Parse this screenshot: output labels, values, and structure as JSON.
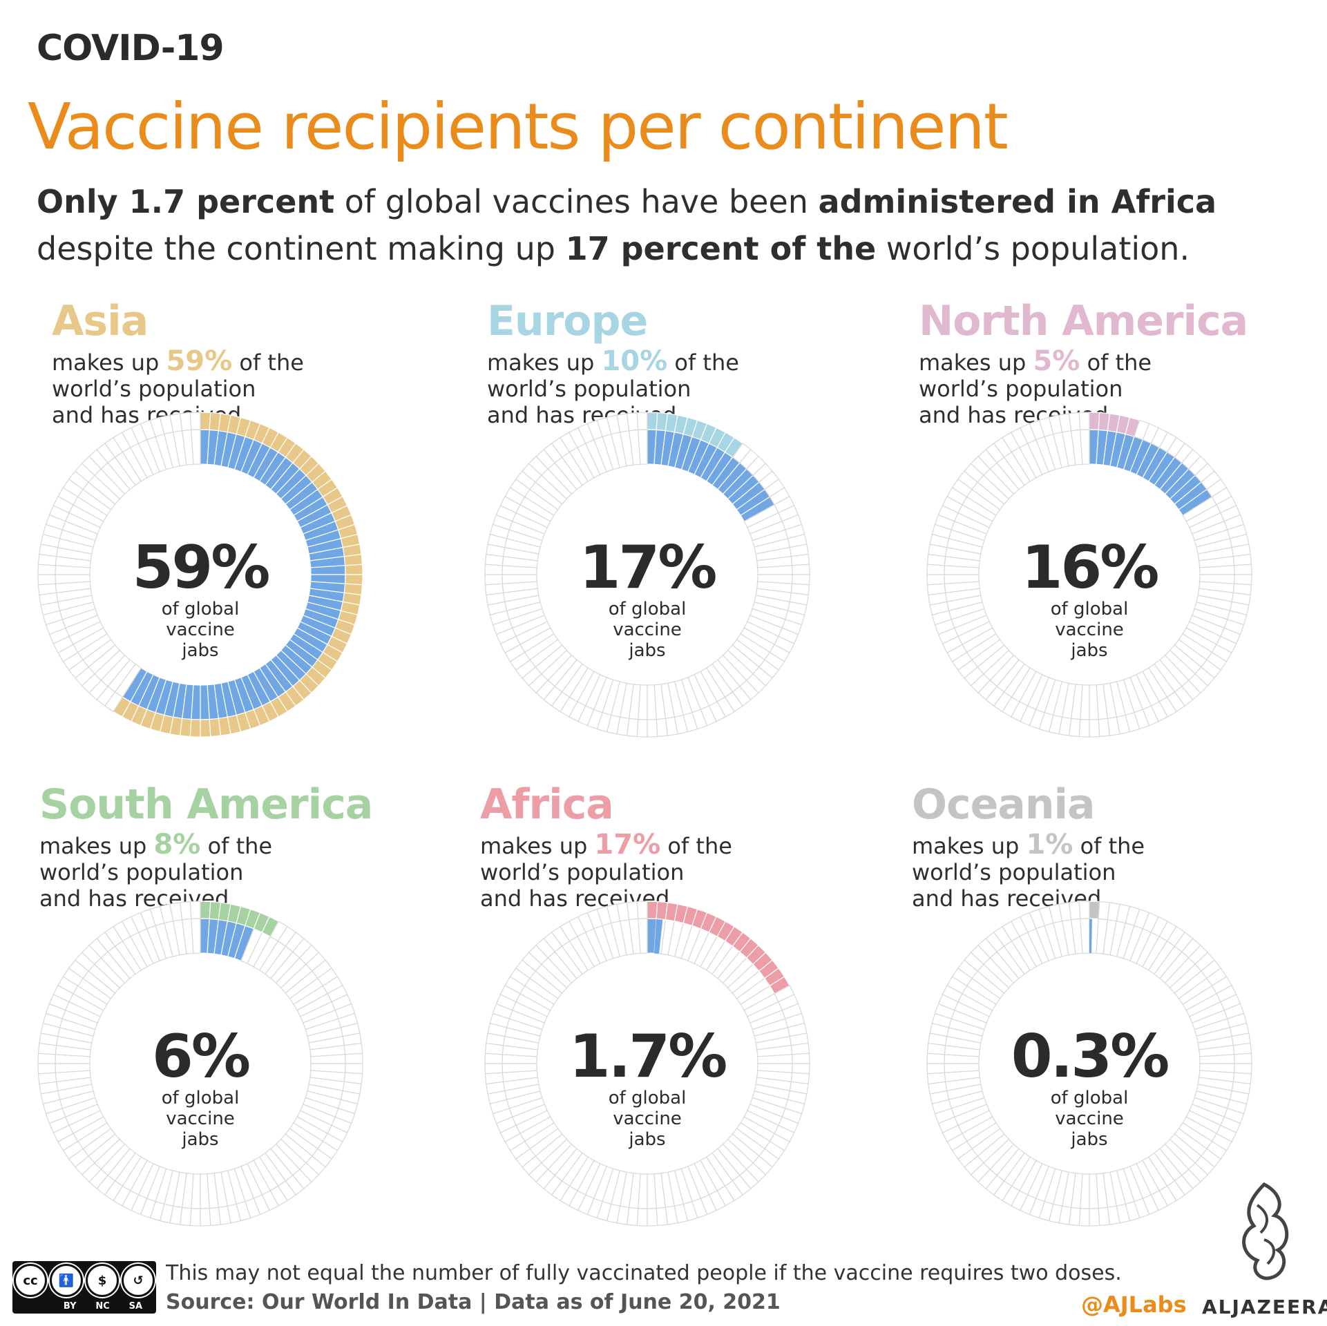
{
  "header": {
    "kicker": "COVID-19",
    "title": "Vaccine recipients per continent",
    "subtitle": {
      "p1": "Only 1.7 percent",
      "p2": " of global vaccines have been ",
      "p3": "administered in Africa",
      "p4": " despite the continent making up ",
      "p5": "17 percent of the",
      "p6": " world’s population."
    }
  },
  "colors": {
    "inner_fill": "#6fa6e3",
    "grid_stroke": "#d8d8d8",
    "title": "#ea8c1c"
  },
  "chart_data": [
    {
      "type": "pie",
      "continent": "Asia",
      "population_share": 59,
      "vaccine_share": 59,
      "big_label": "59%",
      "pop_label": "59%",
      "color": "#e8c888"
    },
    {
      "type": "pie",
      "continent": "Europe",
      "population_share": 10,
      "vaccine_share": 17,
      "big_label": "17%",
      "pop_label": "10%",
      "color": "#a8d5e3"
    },
    {
      "type": "pie",
      "continent": "North America",
      "population_share": 5,
      "vaccine_share": 16,
      "big_label": "16%",
      "pop_label": "5%",
      "color": "#e0b8cf"
    },
    {
      "type": "pie",
      "continent": "South America",
      "population_share": 8,
      "vaccine_share": 6,
      "big_label": "6%",
      "pop_label": "8%",
      "color": "#a6d2a2"
    },
    {
      "type": "pie",
      "continent": "Africa",
      "population_share": 17,
      "vaccine_share": 1.7,
      "big_label": "1.7%",
      "pop_label": "17%",
      "color": "#ec9da5"
    },
    {
      "type": "pie",
      "continent": "Oceania",
      "population_share": 1,
      "vaccine_share": 0.3,
      "big_label": "0.3%",
      "pop_label": "1%",
      "color": "#c4c4c4"
    }
  ],
  "text": {
    "makes_up": "makes up",
    "of_the": "of the",
    "line2": "world’s population",
    "line3": "and has received",
    "center_l1": "of global",
    "center_l2": "vaccine",
    "center_l3": "jabs"
  },
  "footer": {
    "note": "This may not equal the number of fully vaccinated people if the vaccine requires two doses.",
    "source": "Source: Our World In Data | Data as of June 20, 2021",
    "handle": "@AJLabs",
    "brand": "ALJAZEERA",
    "cc_labels": [
      "BY",
      "NC",
      "SA"
    ]
  }
}
